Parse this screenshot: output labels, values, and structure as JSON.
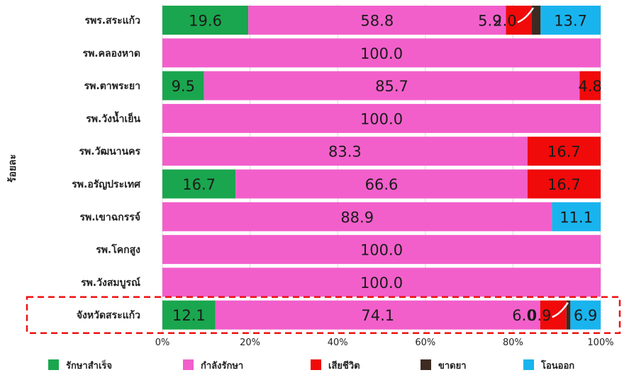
{
  "chart_data": {
    "type": "bar",
    "orientation": "horizontal",
    "stacked": true,
    "percent": true,
    "ylabel": "ร้อยละ",
    "xlim": [
      0,
      100
    ],
    "xticks": [
      "0%",
      "20%",
      "40%",
      "60%",
      "80%",
      "100%"
    ],
    "categories": [
      "รพร.สระแก้ว",
      "รพ.คลองหาด",
      "รพ.ตาพระยา",
      "รพ.วังน้ำเย็น",
      "รพ.วัฒนานคร",
      "รพ.อรัญประเทศ",
      "รพ.เขาฉกรรจ์",
      "รพ.โคกสูง",
      "รพ.วังสมบูรณ์",
      "จังหวัดสระแก้ว"
    ],
    "series": [
      {
        "name": "รักษาสำเร็จ",
        "color": "#1aa64e",
        "values": [
          19.6,
          0,
          9.5,
          0,
          0,
          16.7,
          0,
          0,
          0,
          12.1
        ]
      },
      {
        "name": "กำลังรักษา",
        "color": "#f25fcb",
        "values": [
          58.8,
          100.0,
          85.7,
          100.0,
          83.3,
          66.6,
          88.9,
          100.0,
          100.0,
          74.1
        ]
      },
      {
        "name": "เสียชีวิต",
        "color": "#f00a0a",
        "values": [
          5.9,
          0,
          4.8,
          0,
          16.7,
          16.7,
          0,
          0,
          0,
          6.0
        ]
      },
      {
        "name": "ขาดยา",
        "color": "#3d2b22",
        "values": [
          2.0,
          0,
          0,
          0,
          0,
          0,
          0,
          0,
          0,
          0.9
        ]
      },
      {
        "name": "โอนออก",
        "color": "#19b4ee",
        "values": [
          13.7,
          0,
          0,
          0,
          0,
          0,
          11.1,
          0,
          0,
          6.9
        ]
      }
    ],
    "legend_position": "bottom",
    "highlighted_category": "จังหวัดสระแก้ว"
  }
}
